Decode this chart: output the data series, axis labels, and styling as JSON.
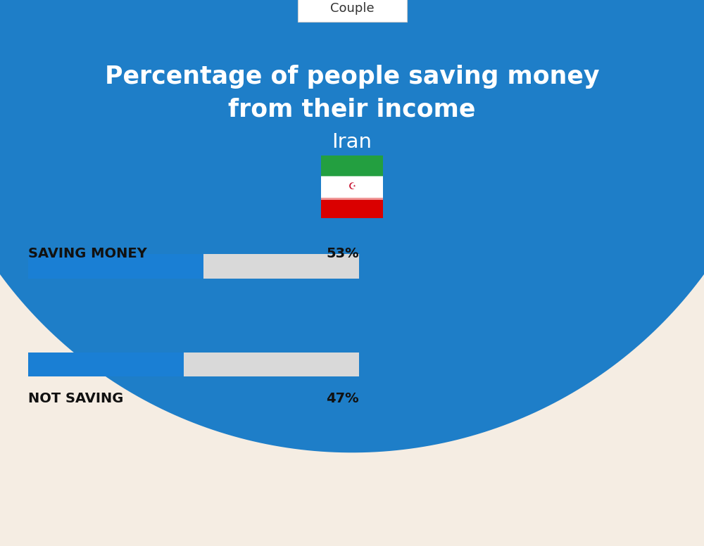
{
  "title_line1": "Percentage of people saving money",
  "title_line2": "from their income",
  "subtitle": "Iran",
  "category_label": "Couple",
  "bg_color": "#f5ede3",
  "header_bg_color": "#1e7ec8",
  "bar_active_color": "#1a7fd4",
  "bar_inactive_color": "#d9d9d9",
  "label1": "SAVING MONEY",
  "value1": 53,
  "label1_text": "53%",
  "label2": "NOT SAVING",
  "value2": 47,
  "label2_text": "47%",
  "title_color": "#ffffff",
  "subtitle_color": "#ffffff",
  "label_color": "#111111",
  "category_text_color": "#333333",
  "flag_green": "#239f40",
  "flag_white": "#ffffff",
  "flag_red": "#da0000"
}
